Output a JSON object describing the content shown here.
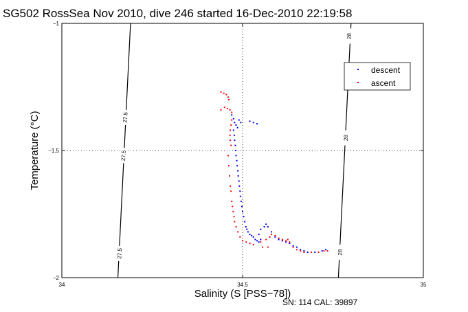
{
  "chart_data": {
    "type": "scatter",
    "title": "SG502 RossSea Nov 2010, dive 246 started 16-Dec-2010 22:19:58",
    "xlabel": "Salinity (S [PSS−78])",
    "ylabel": "Temperature (°C)",
    "xlim": [
      34,
      35
    ],
    "ylim": [
      -2,
      -1
    ],
    "xticks": [
      34,
      34.5,
      35
    ],
    "xtick_labels": [
      "34",
      "34.5",
      "35"
    ],
    "yticks": [
      -2,
      -1.5,
      -1
    ],
    "ytick_labels": [
      "−2",
      "−1.5",
      "−1"
    ],
    "grid": true,
    "legend_position": "top-right",
    "footer": "SN: 114  CAL: 39897",
    "density_contours": [
      {
        "label": "27.5",
        "points": [
          [
            34.155,
            -2.0
          ],
          [
            34.19,
            -1.0
          ]
        ],
        "label_at": [
          [
            34.176,
            -1.37
          ],
          [
            34.171,
            -1.52
          ],
          [
            34.16,
            -1.905
          ]
        ]
      },
      {
        "label": "28",
        "points": [
          [
            34.765,
            -2.0
          ],
          [
            34.8,
            -1.0
          ]
        ],
        "label_at": [
          [
            34.795,
            -1.05
          ],
          [
            34.786,
            -1.45
          ],
          [
            34.77,
            -1.9
          ]
        ]
      }
    ],
    "series": [
      {
        "name": "descent",
        "color": "#0000ff",
        "points": [
          [
            34.47,
            -1.36
          ],
          [
            34.475,
            -1.375
          ],
          [
            34.478,
            -1.39
          ],
          [
            34.482,
            -1.4
          ],
          [
            34.486,
            -1.41
          ],
          [
            34.49,
            -1.38
          ],
          [
            34.495,
            -1.39
          ],
          [
            34.52,
            -1.385
          ],
          [
            34.53,
            -1.39
          ],
          [
            34.54,
            -1.395
          ],
          [
            34.475,
            -1.42
          ],
          [
            34.477,
            -1.44
          ],
          [
            34.478,
            -1.46
          ],
          [
            34.48,
            -1.48
          ],
          [
            34.481,
            -1.5
          ],
          [
            34.482,
            -1.52
          ],
          [
            34.484,
            -1.54
          ],
          [
            34.485,
            -1.56
          ],
          [
            34.487,
            -1.58
          ],
          [
            34.488,
            -1.6
          ],
          [
            34.49,
            -1.62
          ],
          [
            34.491,
            -1.64
          ],
          [
            34.493,
            -1.66
          ],
          [
            34.494,
            -1.68
          ],
          [
            34.496,
            -1.7
          ],
          [
            34.498,
            -1.72
          ],
          [
            34.5,
            -1.74
          ],
          [
            34.503,
            -1.76
          ],
          [
            34.506,
            -1.78
          ],
          [
            34.509,
            -1.8
          ],
          [
            34.512,
            -1.81
          ],
          [
            34.515,
            -1.82
          ],
          [
            34.52,
            -1.83
          ],
          [
            34.525,
            -1.835
          ],
          [
            34.53,
            -1.84
          ],
          [
            34.535,
            -1.85
          ],
          [
            34.54,
            -1.855
          ],
          [
            34.545,
            -1.86
          ],
          [
            34.55,
            -1.85
          ],
          [
            34.56,
            -1.8
          ],
          [
            34.565,
            -1.79
          ],
          [
            34.57,
            -1.8
          ],
          [
            34.58,
            -1.82
          ],
          [
            34.59,
            -1.84
          ],
          [
            34.6,
            -1.85
          ],
          [
            34.61,
            -1.855
          ],
          [
            34.62,
            -1.86
          ],
          [
            34.63,
            -1.865
          ],
          [
            34.64,
            -1.875
          ],
          [
            34.65,
            -1.88
          ],
          [
            34.66,
            -1.89
          ],
          [
            34.67,
            -1.895
          ],
          [
            34.68,
            -1.9
          ],
          [
            34.7,
            -1.9
          ],
          [
            34.72,
            -1.895
          ],
          [
            34.73,
            -1.89
          ],
          [
            34.55,
            -1.81
          ],
          [
            34.545,
            -1.83
          ]
        ]
      },
      {
        "name": "ascent",
        "color": "#ff0000",
        "points": [
          [
            34.44,
            -1.27
          ],
          [
            34.448,
            -1.275
          ],
          [
            34.455,
            -1.28
          ],
          [
            34.46,
            -1.29
          ],
          [
            34.462,
            -1.3
          ],
          [
            34.45,
            -1.33
          ],
          [
            34.458,
            -1.335
          ],
          [
            34.465,
            -1.34
          ],
          [
            34.44,
            -1.34
          ],
          [
            34.47,
            -1.35
          ],
          [
            34.47,
            -1.38
          ],
          [
            34.468,
            -1.4
          ],
          [
            34.466,
            -1.42
          ],
          [
            34.465,
            -1.44
          ],
          [
            34.466,
            -1.46
          ],
          [
            34.468,
            -1.48
          ],
          [
            34.46,
            -1.52
          ],
          [
            34.462,
            -1.56
          ],
          [
            34.464,
            -1.6
          ],
          [
            34.466,
            -1.64
          ],
          [
            34.468,
            -1.66
          ],
          [
            34.47,
            -1.7
          ],
          [
            34.472,
            -1.72
          ],
          [
            34.474,
            -1.74
          ],
          [
            34.476,
            -1.76
          ],
          [
            34.478,
            -1.78
          ],
          [
            34.482,
            -1.8
          ],
          [
            34.487,
            -1.82
          ],
          [
            34.493,
            -1.84
          ],
          [
            34.5,
            -1.855
          ],
          [
            34.51,
            -1.86
          ],
          [
            34.52,
            -1.865
          ],
          [
            34.53,
            -1.87
          ],
          [
            34.55,
            -1.86
          ],
          [
            34.565,
            -1.85
          ],
          [
            34.575,
            -1.84
          ],
          [
            34.58,
            -1.83
          ],
          [
            34.59,
            -1.835
          ],
          [
            34.6,
            -1.845
          ],
          [
            34.61,
            -1.85
          ],
          [
            34.62,
            -1.855
          ],
          [
            34.625,
            -1.85
          ],
          [
            34.63,
            -1.86
          ],
          [
            34.64,
            -1.88
          ],
          [
            34.65,
            -1.89
          ],
          [
            34.66,
            -1.895
          ],
          [
            34.67,
            -1.9
          ],
          [
            34.69,
            -1.9
          ],
          [
            34.71,
            -1.9
          ],
          [
            34.725,
            -1.895
          ],
          [
            34.735,
            -1.895
          ],
          [
            34.555,
            -1.88
          ],
          [
            34.57,
            -1.88
          ]
        ]
      }
    ]
  }
}
